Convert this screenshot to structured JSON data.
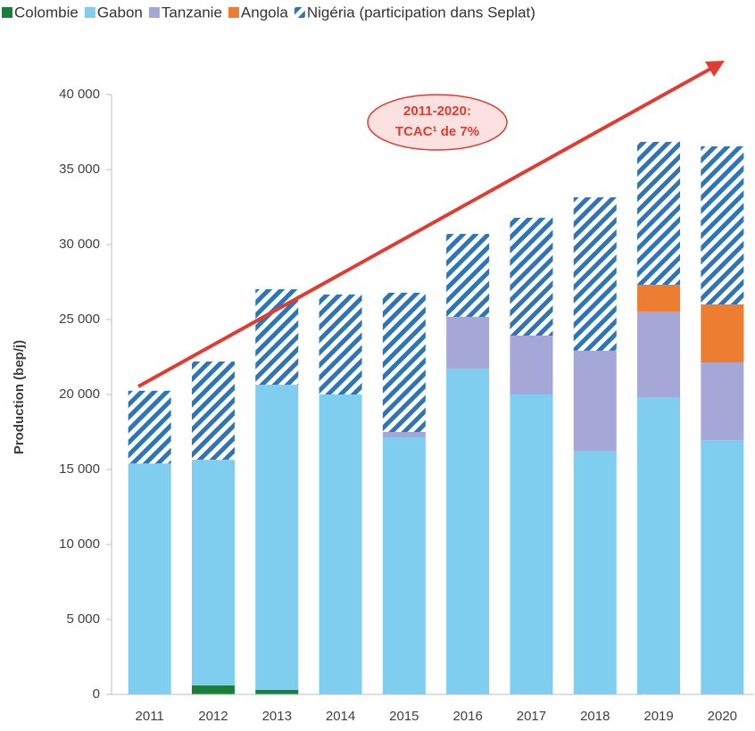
{
  "chart_data": {
    "type": "stacked-bar",
    "y_label": "Production (bep/j)",
    "annotation": [
      "2011-2020:",
      "TCAC¹ de 7%"
    ],
    "categories": [
      "2011",
      "2012",
      "2013",
      "2014",
      "2015",
      "2016",
      "2017",
      "2018",
      "2019",
      "2020"
    ],
    "series": [
      {
        "name": "Colombie",
        "color": "#1a7f3b",
        "values": [
          0,
          600,
          300,
          0,
          0,
          0,
          0,
          0,
          0,
          0
        ]
      },
      {
        "name": "Gabon",
        "color": "#7fcdef",
        "values": [
          15400,
          15050,
          20350,
          20000,
          17140,
          21730,
          20000,
          16250,
          19820,
          16960
        ]
      },
      {
        "name": "Tanzanie",
        "color": "#a5a8d6",
        "values": [
          0,
          0,
          0,
          0,
          360,
          3450,
          3930,
          6670,
          5720,
          5180
        ]
      },
      {
        "name": "Angola",
        "color": "#ed7d31",
        "values": [
          0,
          0,
          0,
          0,
          0,
          0,
          0,
          0,
          1780,
          3870
        ]
      },
      {
        "name": "Nigéria (participation dans Seplat)",
        "color": "#2e75b6",
        "pattern": "hatch",
        "values": [
          4850,
          6550,
          6370,
          6670,
          9290,
          5530,
          7860,
          10230,
          9530,
          10540
        ]
      }
    ],
    "ylim": [
      0,
      40000
    ],
    "yticks": [
      0,
      {
        "value": 5000,
        "label": "5 000"
      },
      {
        "value": 10000,
        "label": "10 000"
      },
      {
        "value": 15000,
        "label": "15 000"
      },
      {
        "value": 20000,
        "label": "20 000"
      },
      {
        "value": 25000,
        "label": "25 000"
      },
      {
        "value": 30000,
        "label": "30 000"
      },
      {
        "value": 35000,
        "label": "35 000"
      },
      {
        "value": 40000,
        "label": "40 000"
      }
    ],
    "legend": "top"
  }
}
